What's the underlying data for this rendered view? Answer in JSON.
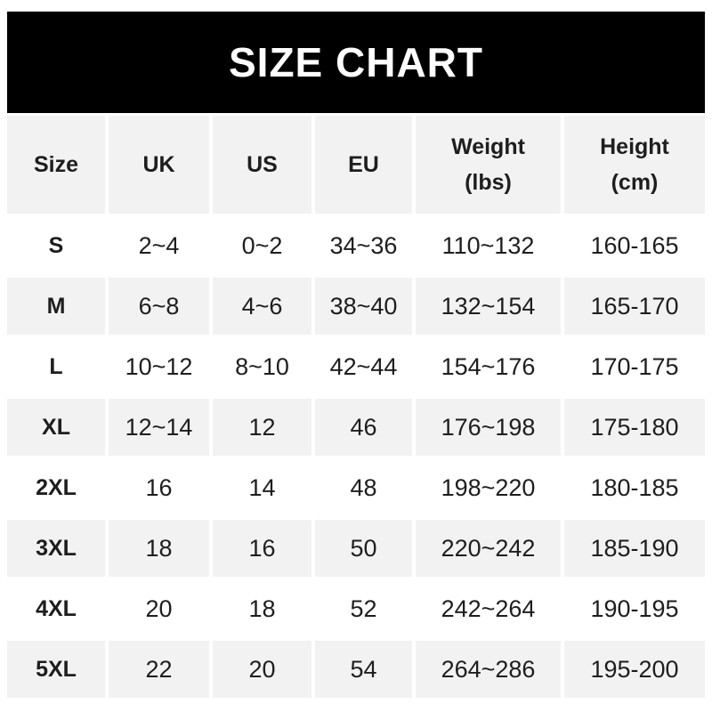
{
  "title": "SIZE CHART",
  "colors": {
    "banner_bg": "#000000",
    "banner_text": "#ffffff",
    "alt_row_bg": "#f2f2f2",
    "text_color": "#1e1e1e"
  },
  "table": {
    "columns": [
      {
        "label": "Size",
        "sub": ""
      },
      {
        "label": "UK",
        "sub": ""
      },
      {
        "label": "US",
        "sub": ""
      },
      {
        "label": "EU",
        "sub": ""
      },
      {
        "label": "Weight",
        "sub": "(lbs)"
      },
      {
        "label": "Height",
        "sub": "(cm)"
      }
    ],
    "rows": [
      {
        "size": "S",
        "uk": "2~4",
        "us": "0~2",
        "eu": "34~36",
        "weight": "110~132",
        "height": "160-165"
      },
      {
        "size": "M",
        "uk": "6~8",
        "us": "4~6",
        "eu": "38~40",
        "weight": "132~154",
        "height": "165-170"
      },
      {
        "size": "L",
        "uk": "10~12",
        "us": "8~10",
        "eu": "42~44",
        "weight": "154~176",
        "height": "170-175"
      },
      {
        "size": "XL",
        "uk": "12~14",
        "us": "12",
        "eu": "46",
        "weight": "176~198",
        "height": "175-180"
      },
      {
        "size": "2XL",
        "uk": "16",
        "us": "14",
        "eu": "48",
        "weight": "198~220",
        "height": "180-185"
      },
      {
        "size": "3XL",
        "uk": "18",
        "us": "16",
        "eu": "50",
        "weight": "220~242",
        "height": "185-190"
      },
      {
        "size": "4XL",
        "uk": "20",
        "us": "18",
        "eu": "52",
        "weight": "242~264",
        "height": "190-195"
      },
      {
        "size": "5XL",
        "uk": "22",
        "us": "20",
        "eu": "54",
        "weight": "264~286",
        "height": "195-200"
      }
    ]
  }
}
